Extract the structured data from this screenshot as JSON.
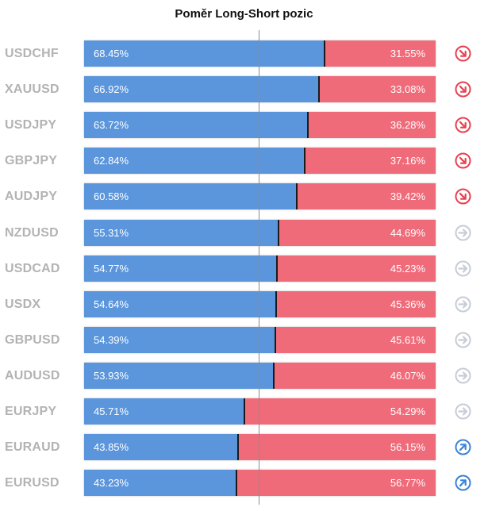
{
  "title": "Poměr Long-Short pozic",
  "colors": {
    "long": "#5b96dd",
    "short": "#f06b7a",
    "symbol_text": "#b3b3b3",
    "arrow_down": "#e8414f",
    "arrow_neutral": "#c7ccd6",
    "arrow_up": "#3b82d6"
  },
  "chart_data": {
    "type": "bar",
    "title": "Poměr Long-Short pozic",
    "categories": [
      "USDCHF",
      "XAUUSD",
      "USDJPY",
      "GBPJPY",
      "AUDJPY",
      "NZDUSD",
      "USDCAD",
      "USDX",
      "GBPUSD",
      "AUDUSD",
      "EURJPY",
      "EURAUD",
      "EURUSD"
    ],
    "series": [
      {
        "values": [
          68.45,
          66.92,
          63.72,
          62.84,
          60.58,
          55.31,
          54.77,
          54.64,
          54.39,
          53.93,
          45.71,
          43.85,
          43.23
        ]
      },
      {
        "values": [
          31.55,
          33.08,
          36.28,
          37.16,
          39.42,
          44.69,
          45.23,
          45.36,
          45.61,
          46.07,
          54.29,
          56.15,
          56.77
        ]
      }
    ],
    "long_labels": [
      "68.45%",
      "66.92%",
      "63.72%",
      "62.84%",
      "60.58%",
      "55.31%",
      "54.77%",
      "54.64%",
      "54.39%",
      "53.93%",
      "45.71%",
      "43.85%",
      "43.23%"
    ],
    "short_labels": [
      "31.55%",
      "33.08%",
      "36.28%",
      "37.16%",
      "39.42%",
      "44.69%",
      "45.23%",
      "45.36%",
      "45.61%",
      "46.07%",
      "54.29%",
      "56.15%",
      "56.77%"
    ],
    "trend_icons": [
      "arrow-down-right-icon",
      "arrow-down-right-icon",
      "arrow-down-right-icon",
      "arrow-down-right-icon",
      "arrow-down-right-icon",
      "arrow-right-icon",
      "arrow-right-icon",
      "arrow-right-icon",
      "arrow-right-icon",
      "arrow-right-icon",
      "arrow-right-icon",
      "arrow-up-right-icon",
      "arrow-up-right-icon"
    ],
    "stacked": true,
    "xlim": [
      0,
      100
    ],
    "grid": false,
    "reference_line": 50
  }
}
